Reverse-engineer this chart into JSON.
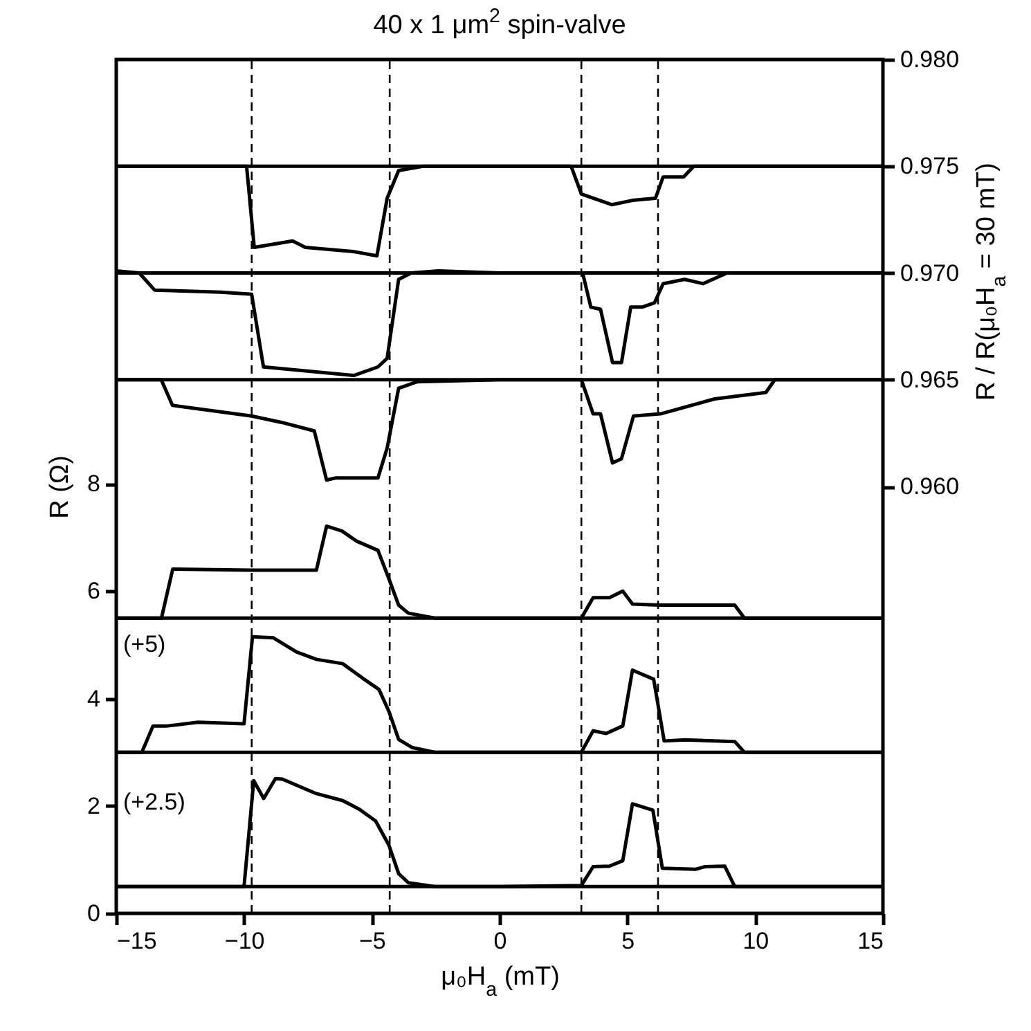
{
  "chart_data": {
    "type": "line",
    "title": "40 x 1 μm$^{2}$ spin-valve",
    "xlabel": "μ₀H$_{a}$ (mT)",
    "ylabel": "R (Ω)",
    "y2label": "R / R(μ₀H$_{a}$ = 30 mT)",
    "xlim": [
      -15,
      15
    ],
    "xticks": [
      -15,
      -10,
      -5,
      0,
      5,
      10,
      15
    ],
    "ylim": [
      0,
      15.9
    ],
    "yticks": [
      0,
      2,
      4,
      6,
      8
    ],
    "y2lim": [
      0.94,
      0.98
    ],
    "y2ticks": [
      {
        "value": 0.96,
        "label": "0.960"
      },
      {
        "value": 0.965,
        "label": "0.965"
      },
      {
        "value": 0.97,
        "label": "0.970"
      },
      {
        "value": 0.975,
        "label": "0.975"
      },
      {
        "value": 0.98,
        "label": "0.980"
      }
    ],
    "series": [
      {
        "color": "#000000",
        "axis": "y2",
        "x": [
          -15,
          0,
          15
        ],
        "values": [
          0.975,
          0.975,
          0.975
        ]
      },
      {
        "color": "#000000",
        "axis": "y2",
        "x": [
          -15,
          -9.9,
          -9.6,
          -8.1,
          -7.6,
          -5.7,
          -4.8,
          -4.4,
          -3.95,
          -3,
          0,
          2.8,
          3.2,
          4.4,
          5.2,
          6.1,
          6.4,
          7.2,
          7.6,
          10,
          15
        ],
        "values": [
          0.975,
          0.975,
          0.9712,
          0.9715,
          0.9712,
          0.971,
          0.9708,
          0.9735,
          0.9748,
          0.975,
          0.975,
          0.975,
          0.9737,
          0.9732,
          0.9734,
          0.9735,
          0.9745,
          0.9745,
          0.975,
          0.975,
          0.975
        ]
      },
      {
        "color": "#000000",
        "axis": "y2",
        "x": [
          -15,
          0,
          15
        ],
        "values": [
          0.97,
          0.97,
          0.97
        ]
      },
      {
        "color": "#000000",
        "axis": "y2",
        "x": [
          -15,
          -14.1,
          -13.5,
          -10.9,
          -9.7,
          -9.24,
          -5.7,
          -4.76,
          -4.4,
          -3.95,
          -3.46,
          -2.4,
          0,
          3.25,
          3.57,
          3.95,
          4.42,
          4.77,
          5.13,
          5.58,
          6.06,
          6.4,
          7.24,
          7.96,
          8.9,
          15
        ],
        "values": [
          0.9701,
          0.97,
          0.9692,
          0.9691,
          0.969,
          0.9656,
          0.9652,
          0.9656,
          0.966,
          0.9697,
          0.97,
          0.9701,
          0.97,
          0.97,
          0.9684,
          0.9683,
          0.9658,
          0.9658,
          0.9684,
          0.9684,
          0.9686,
          0.9695,
          0.9697,
          0.9695,
          0.97,
          0.97
        ]
      },
      {
        "color": "#000000",
        "axis": "y2",
        "x": [
          -15,
          0,
          15
        ],
        "values": [
          0.965,
          0.965,
          0.965
        ]
      },
      {
        "color": "#000000",
        "axis": "y2",
        "x": [
          -15,
          -13.24,
          -12.8,
          -9.7,
          -8.53,
          -7.25,
          -6.77,
          -6.4,
          -4.76,
          -4.4,
          -3.95,
          -3.24,
          0,
          3.2,
          3.66,
          3.95,
          4.42,
          4.77,
          5.24,
          6.3,
          8.42,
          10.42,
          10.77,
          15
        ],
        "values": [
          0.965,
          0.965,
          0.9638,
          0.9633,
          0.963,
          0.9626,
          0.9603,
          0.9604,
          0.9604,
          0.9618,
          0.9646,
          0.9649,
          0.965,
          0.965,
          0.9634,
          0.9634,
          0.9611,
          0.9613,
          0.9633,
          0.9634,
          0.9641,
          0.9644,
          0.965,
          0.965
        ]
      },
      {
        "color": "#000000",
        "x": [
          -15,
          0,
          15
        ],
        "values": [
          5.5,
          5.5,
          5.5
        ]
      },
      {
        "color": "#000000",
        "x": [
          -15,
          -13.23,
          -12.79,
          -9.75,
          -7.17,
          -6.77,
          -6.17,
          -5.59,
          -4.76,
          -4.33,
          -3.95,
          -3.57,
          -2.54,
          0,
          3.2,
          3.66,
          4.3,
          4.82,
          5.2,
          6.23,
          9.2,
          9.58,
          15
        ],
        "values": [
          5.5,
          5.5,
          6.41,
          6.39,
          6.39,
          7.21,
          7.12,
          6.93,
          6.76,
          6.23,
          5.74,
          5.59,
          5.5,
          5.5,
          5.5,
          5.88,
          5.88,
          6.0,
          5.76,
          5.74,
          5.74,
          5.5,
          5.5
        ]
      },
      {
        "color": "#000000",
        "x": [
          -15,
          0,
          15
        ],
        "values": [
          3,
          3,
          3
        ]
      },
      {
        "color": "#000000",
        "x": [
          -15,
          -14,
          -13.56,
          -13,
          -11.8,
          -10,
          -9.67,
          -8.85,
          -7.95,
          -7.17,
          -6.14,
          -5.36,
          -4.72,
          -4.33,
          -3.95,
          -3.43,
          -2.54,
          0,
          3.2,
          3.66,
          4.17,
          4.82,
          5.2,
          6.03,
          6.44,
          7.26,
          9.2,
          9.58,
          15
        ],
        "values": [
          3,
          3,
          3.49,
          3.49,
          3.56,
          3.53,
          5.15,
          5.13,
          4.87,
          4.73,
          4.65,
          4.38,
          4.17,
          3.76,
          3.24,
          3.09,
          3,
          3,
          3,
          3.4,
          3.35,
          3.49,
          4.53,
          4.36,
          3.21,
          3.23,
          3.2,
          3,
          3
        ]
      },
      {
        "color": "#000000",
        "x": [
          -15,
          0,
          15
        ],
        "values": [
          0.5,
          0.5,
          0.5
        ]
      },
      {
        "color": "#000000",
        "x": [
          -15,
          -10,
          -9.62,
          -9.23,
          -8.77,
          -8.5,
          -7.17,
          -6.14,
          -5.49,
          -4.85,
          -4.33,
          -3.95,
          -3.57,
          -2.54,
          0,
          3.2,
          3.66,
          4.3,
          4.82,
          5.2,
          6,
          6.37,
          7.66,
          8.04,
          8.81,
          9.2,
          15
        ],
        "values": [
          0.5,
          0.5,
          2.47,
          2.14,
          2.51,
          2.5,
          2.23,
          2.1,
          1.94,
          1.72,
          1.27,
          0.74,
          0.57,
          0.5,
          0.5,
          0.52,
          0.87,
          0.88,
          0.98,
          2.04,
          1.92,
          0.84,
          0.82,
          0.87,
          0.88,
          0.5,
          0.5
        ]
      }
    ],
    "ref_lines": [
      {
        "axis": "x",
        "value": -9.7,
        "line_style": "dashed"
      },
      {
        "axis": "x",
        "value": -4.3,
        "line_style": "dashed"
      },
      {
        "axis": "x",
        "value": 3.2,
        "line_style": "dashed"
      },
      {
        "axis": "x",
        "value": 6.2,
        "line_style": "dashed"
      }
    ],
    "annotations": [
      "(+5)",
      "(+2.5)"
    ]
  }
}
